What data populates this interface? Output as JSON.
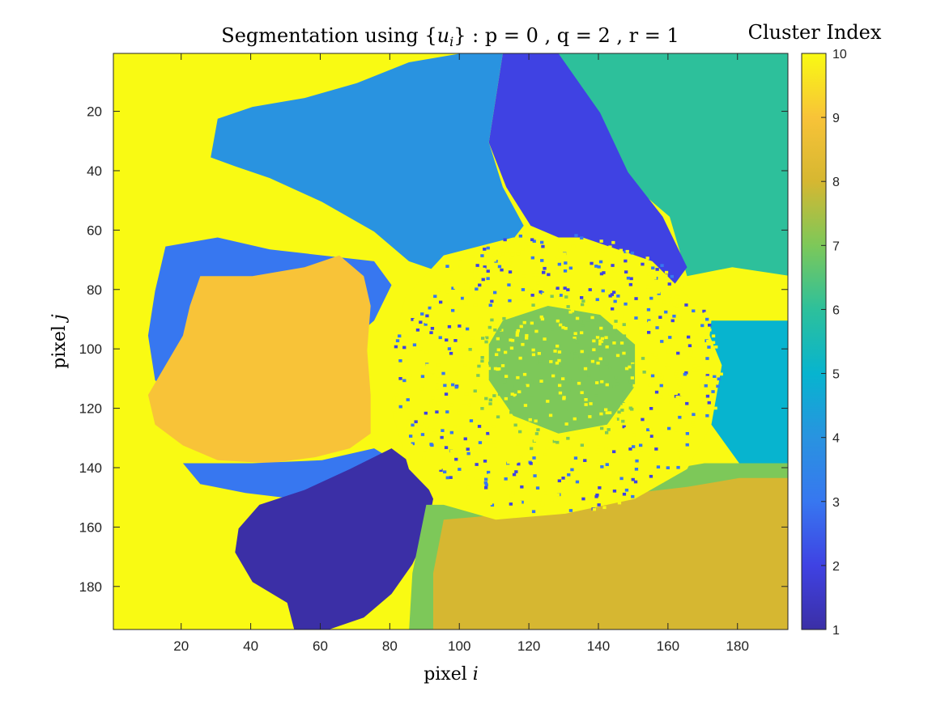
{
  "chart_data": {
    "type": "heatmap",
    "title": "Segmentation using {u_i} : p = 0 , q = 2 , r = 1",
    "title_parts": {
      "prefix": "Segmentation using {",
      "var": "u",
      "sub": "i",
      "suffix": "} : p = 0 , q = 2 , r = 1"
    },
    "xlabel": "pixel i",
    "xlabel_parts": {
      "text": "pixel ",
      "var": "i"
    },
    "ylabel": "pixel j",
    "ylabel_parts": {
      "text": "pixel ",
      "var": "j"
    },
    "colorbar_label": "Cluster Index",
    "xlim": [
      0.5,
      194.5
    ],
    "ylim": [
      0.5,
      194.5
    ],
    "y_reversed": true,
    "xticks": [
      20,
      40,
      60,
      80,
      100,
      120,
      140,
      160,
      180
    ],
    "xtick_labels": [
      "20",
      "40",
      "60",
      "80",
      "100",
      "120",
      "140",
      "160",
      "180"
    ],
    "yticks": [
      20,
      40,
      60,
      80,
      100,
      120,
      140,
      160,
      180
    ],
    "ytick_labels": [
      "20",
      "40",
      "60",
      "80",
      "100",
      "120",
      "140",
      "160",
      "180"
    ],
    "clim": [
      1,
      10
    ],
    "colorbar_ticks": [
      1,
      2,
      3,
      4,
      5,
      6,
      7,
      8,
      9,
      10
    ],
    "colorbar_tick_labels": [
      "1",
      "2",
      "3",
      "4",
      "5",
      "6",
      "7",
      "8",
      "9",
      "10"
    ],
    "colormap": "parula",
    "cluster_colors": [
      "#3b2fa6",
      "#3f42e3",
      "#3777f0",
      "#2993e0",
      "#07b4cf",
      "#2dc09b",
      "#7dc859",
      "#d6b731",
      "#f8c338",
      "#f9fa13"
    ],
    "grid": false,
    "regions": [
      {
        "cluster": 10,
        "desc": "background",
        "polygon": [
          [
            0,
            0
          ],
          [
            195,
            0
          ],
          [
            195,
            195
          ],
          [
            0,
            195
          ]
        ]
      },
      {
        "cluster": 6,
        "desc": "top-right petal",
        "polygon": [
          [
            120,
            0
          ],
          [
            195,
            0
          ],
          [
            195,
            75
          ],
          [
            178,
            72
          ],
          [
            165,
            75
          ],
          [
            160,
            55
          ],
          [
            150,
            45
          ],
          [
            140,
            30
          ],
          [
            130,
            15
          ]
        ]
      },
      {
        "cluster": 2,
        "desc": "top petal",
        "polygon": [
          [
            112,
            0
          ],
          [
            128,
            0
          ],
          [
            140,
            20
          ],
          [
            148,
            40
          ],
          [
            158,
            55
          ],
          [
            165,
            72
          ],
          [
            160,
            80
          ],
          [
            150,
            75
          ],
          [
            140,
            65
          ],
          [
            128,
            62
          ],
          [
            120,
            58
          ],
          [
            113,
            45
          ],
          [
            108,
            30
          ],
          [
            110,
            15
          ]
        ]
      },
      {
        "cluster": 4,
        "desc": "top-left petal",
        "polygon": [
          [
            55,
            15
          ],
          [
            70,
            10
          ],
          [
            85,
            3
          ],
          [
            100,
            0
          ],
          [
            112,
            0
          ],
          [
            108,
            30
          ],
          [
            112,
            45
          ],
          [
            118,
            58
          ],
          [
            110,
            70
          ],
          [
            95,
            74
          ],
          [
            85,
            70
          ],
          [
            75,
            60
          ],
          [
            60,
            50
          ],
          [
            45,
            42
          ],
          [
            35,
            38
          ],
          [
            28,
            35
          ],
          [
            30,
            22
          ],
          [
            40,
            18
          ]
        ]
      },
      {
        "cluster": 3,
        "desc": "left petal edge",
        "polygon": [
          [
            15,
            65
          ],
          [
            30,
            62
          ],
          [
            45,
            66
          ],
          [
            60,
            68
          ],
          [
            75,
            70
          ],
          [
            80,
            78
          ],
          [
            75,
            90
          ],
          [
            70,
            95
          ],
          [
            60,
            100
          ],
          [
            45,
            110
          ],
          [
            30,
            118
          ],
          [
            20,
            120
          ],
          [
            12,
            110
          ],
          [
            10,
            95
          ],
          [
            12,
            80
          ]
        ]
      },
      {
        "cluster": 9,
        "desc": "left petal",
        "polygon": [
          [
            25,
            75
          ],
          [
            40,
            75
          ],
          [
            55,
            72
          ],
          [
            65,
            68
          ],
          [
            72,
            75
          ],
          [
            74,
            85
          ],
          [
            73,
            100
          ],
          [
            74,
            115
          ],
          [
            74,
            128
          ],
          [
            68,
            133
          ],
          [
            58,
            136
          ],
          [
            45,
            138
          ],
          [
            30,
            137
          ],
          [
            20,
            132
          ],
          [
            12,
            125
          ],
          [
            10,
            115
          ],
          [
            15,
            105
          ],
          [
            20,
            95
          ],
          [
            22,
            85
          ]
        ]
      },
      {
        "cluster": 3,
        "desc": "lower-left petal edge",
        "polygon": [
          [
            20,
            138
          ],
          [
            40,
            138
          ],
          [
            60,
            137
          ],
          [
            75,
            133
          ],
          [
            82,
            138
          ],
          [
            80,
            145
          ],
          [
            68,
            150
          ],
          [
            52,
            150
          ],
          [
            38,
            148
          ],
          [
            25,
            145
          ]
        ]
      },
      {
        "cluster": 1,
        "desc": "bottom-left petal",
        "polygon": [
          [
            42,
            152
          ],
          [
            55,
            147
          ],
          [
            68,
            140
          ],
          [
            80,
            133
          ],
          [
            88,
            140
          ],
          [
            92,
            150
          ],
          [
            90,
            162
          ],
          [
            86,
            172
          ],
          [
            80,
            182
          ],
          [
            72,
            190
          ],
          [
            62,
            194
          ],
          [
            52,
            194
          ],
          [
            50,
            185
          ],
          [
            40,
            178
          ],
          [
            35,
            168
          ],
          [
            36,
            160
          ]
        ]
      },
      {
        "cluster": 5,
        "desc": "right petal",
        "polygon": [
          [
            172,
            90
          ],
          [
            195,
            90
          ],
          [
            195,
            140
          ],
          [
            180,
            138
          ],
          [
            172,
            125
          ],
          [
            170,
            110
          ]
        ]
      },
      {
        "cluster": 7,
        "desc": "bottom-right rim",
        "polygon": [
          [
            90,
            152
          ],
          [
            110,
            152
          ],
          [
            130,
            148
          ],
          [
            150,
            142
          ],
          [
            170,
            138
          ],
          [
            195,
            138
          ],
          [
            195,
            195
          ],
          [
            85,
            195
          ],
          [
            86,
            175
          ]
        ]
      },
      {
        "cluster": 8,
        "desc": "bottom-right petal",
        "polygon": [
          [
            95,
            157
          ],
          [
            115,
            155
          ],
          [
            135,
            152
          ],
          [
            150,
            148
          ],
          [
            165,
            146
          ],
          [
            180,
            143
          ],
          [
            195,
            143
          ],
          [
            195,
            195
          ],
          [
            92,
            195
          ],
          [
            92,
            175
          ]
        ]
      },
      {
        "cluster": 10,
        "desc": "flower center",
        "polygon": [
          [
            95,
            68
          ],
          [
            115,
            62
          ],
          [
            135,
            62
          ],
          [
            155,
            70
          ],
          [
            168,
            85
          ],
          [
            175,
            105
          ],
          [
            172,
            125
          ],
          [
            165,
            140
          ],
          [
            150,
            150
          ],
          [
            130,
            155
          ],
          [
            110,
            157
          ],
          [
            95,
            152
          ],
          [
            85,
            140
          ],
          [
            80,
            120
          ],
          [
            80,
            100
          ],
          [
            84,
            82
          ]
        ]
      },
      {
        "cluster": 7,
        "desc": "center core",
        "polygon": [
          [
            112,
            90
          ],
          [
            125,
            85
          ],
          [
            140,
            88
          ],
          [
            150,
            98
          ],
          [
            150,
            112
          ],
          [
            142,
            125
          ],
          [
            128,
            128
          ],
          [
            115,
            122
          ],
          [
            108,
            110
          ],
          [
            108,
            98
          ]
        ]
      }
    ]
  }
}
